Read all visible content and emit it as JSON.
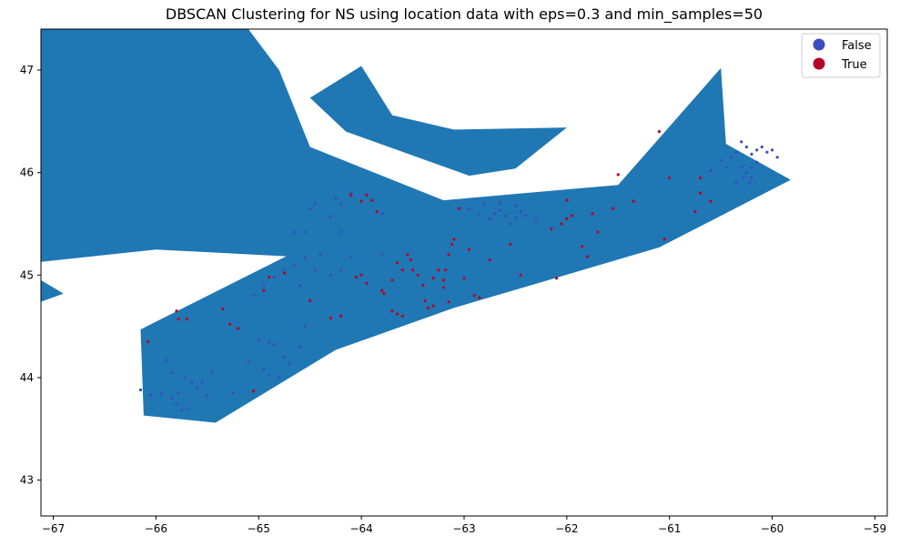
{
  "chart_data": {
    "type": "scatter",
    "title": "DBSCAN Clustering for NS using location data with eps=0.3 and min_samples=50",
    "xlabel": "",
    "ylabel": "",
    "xlim": [
      -67.12,
      -58.88
    ],
    "ylim": [
      42.65,
      47.4
    ],
    "x_ticks": [
      -67,
      -66,
      -65,
      -64,
      -63,
      -62,
      -61,
      -60,
      -59
    ],
    "y_ticks": [
      43,
      44,
      45,
      46,
      47
    ],
    "x_tick_labels": [
      "−67",
      "−66",
      "−65",
      "−64",
      "−63",
      "−62",
      "−61",
      "−60",
      "−59"
    ],
    "y_tick_labels": [
      "43",
      "44",
      "45",
      "46",
      "47"
    ],
    "grid": false,
    "legend_position": "top-right",
    "map_color": "#1f77b4",
    "map_polygons": [
      [
        [
          -67.12,
          47.4
        ],
        [
          -65.1,
          47.4
        ],
        [
          -64.8,
          47.0
        ],
        [
          -64.5,
          46.25
        ],
        [
          -63.2,
          45.73
        ],
        [
          -61.5,
          45.88
        ],
        [
          -60.5,
          47.02
        ],
        [
          -60.45,
          46.28
        ],
        [
          -59.82,
          45.93
        ],
        [
          -61.1,
          45.27
        ],
        [
          -63.1,
          44.68
        ],
        [
          -64.25,
          44.27
        ],
        [
          -65.42,
          43.56
        ],
        [
          -66.12,
          43.63
        ],
        [
          -66.15,
          44.47
        ],
        [
          -64.5,
          45.3
        ],
        [
          -64.45,
          45.17
        ],
        [
          -66.0,
          45.25
        ],
        [
          -67.12,
          45.13
        ]
      ],
      [
        [
          -67.12,
          44.95
        ],
        [
          -66.9,
          44.82
        ],
        [
          -67.12,
          44.74
        ]
      ],
      [
        [
          -64.5,
          46.73
        ],
        [
          -64.0,
          47.04
        ],
        [
          -63.7,
          46.56
        ],
        [
          -63.1,
          46.42
        ],
        [
          -62.0,
          46.44
        ],
        [
          -62.5,
          46.04
        ],
        [
          -62.95,
          45.97
        ],
        [
          -64.15,
          46.4
        ]
      ]
    ],
    "series": [
      {
        "name": "False",
        "color": "#3b4cc0",
        "points": [
          [
            -66.15,
            43.88
          ],
          [
            -66.05,
            43.83
          ],
          [
            -65.95,
            43.84
          ],
          [
            -65.9,
            44.17
          ],
          [
            -65.85,
            43.8
          ],
          [
            -65.8,
            43.75
          ],
          [
            -65.78,
            43.85
          ],
          [
            -65.72,
            44.0
          ],
          [
            -65.65,
            43.95
          ],
          [
            -65.6,
            43.9
          ],
          [
            -65.75,
            43.68
          ],
          [
            -65.7,
            43.7
          ],
          [
            -65.5,
            43.83
          ],
          [
            -65.45,
            44.05
          ],
          [
            -65.25,
            43.85
          ],
          [
            -65.55,
            43.95
          ],
          [
            -65.85,
            44.05
          ],
          [
            -65.0,
            44.37
          ],
          [
            -64.9,
            44.34
          ],
          [
            -64.85,
            44.32
          ],
          [
            -64.75,
            44.2
          ],
          [
            -64.6,
            44.3
          ],
          [
            -64.55,
            44.5
          ],
          [
            -64.8,
            44.0
          ],
          [
            -64.9,
            44.02
          ],
          [
            -64.95,
            44.08
          ],
          [
            -65.1,
            44.15
          ],
          [
            -64.7,
            44.14
          ],
          [
            -65.05,
            44.8
          ],
          [
            -64.95,
            44.9
          ],
          [
            -64.85,
            44.98
          ],
          [
            -64.75,
            45.05
          ],
          [
            -64.65,
            45.1
          ],
          [
            -64.6,
            44.9
          ],
          [
            -64.55,
            45.17
          ],
          [
            -64.3,
            45.0
          ],
          [
            -64.2,
            45.05
          ],
          [
            -64.1,
            45.18
          ],
          [
            -63.8,
            45.2
          ],
          [
            -64.45,
            45.05
          ],
          [
            -64.4,
            45.2
          ],
          [
            -64.65,
            45.42
          ],
          [
            -64.55,
            45.42
          ],
          [
            -64.5,
            45.65
          ],
          [
            -64.45,
            45.7
          ],
          [
            -64.3,
            45.57
          ],
          [
            -64.2,
            45.42
          ],
          [
            -64.1,
            45.8
          ],
          [
            -64.25,
            45.75
          ],
          [
            -63.95,
            45.78
          ],
          [
            -63.8,
            45.6
          ],
          [
            -64.2,
            45.7
          ],
          [
            -62.95,
            45.65
          ],
          [
            -62.85,
            45.6
          ],
          [
            -62.75,
            45.55
          ],
          [
            -62.7,
            45.6
          ],
          [
            -62.65,
            45.63
          ],
          [
            -62.6,
            45.58
          ],
          [
            -62.55,
            45.5
          ],
          [
            -62.5,
            45.56
          ],
          [
            -62.45,
            45.62
          ],
          [
            -62.4,
            45.58
          ],
          [
            -62.3,
            45.55
          ],
          [
            -62.8,
            45.7
          ],
          [
            -62.65,
            45.7
          ],
          [
            -62.5,
            45.68
          ],
          [
            -60.4,
            46.15
          ],
          [
            -60.35,
            46.2
          ],
          [
            -60.3,
            46.3
          ],
          [
            -60.25,
            46.25
          ],
          [
            -60.2,
            46.18
          ],
          [
            -60.15,
            46.22
          ],
          [
            -60.1,
            46.25
          ],
          [
            -60.05,
            46.2
          ],
          [
            -60.0,
            46.22
          ],
          [
            -59.95,
            46.15
          ],
          [
            -60.3,
            46.05
          ],
          [
            -60.25,
            46.0
          ],
          [
            -60.2,
            45.95
          ],
          [
            -60.35,
            45.9
          ],
          [
            -60.28,
            45.95
          ],
          [
            -60.5,
            46.12
          ],
          [
            -60.45,
            46.05
          ],
          [
            -60.6,
            46.02
          ],
          [
            -60.15,
            46.1
          ],
          [
            -60.2,
            46.05
          ],
          [
            -60.22,
            45.9
          ]
        ]
      },
      {
        "name": "True",
        "color": "#b40426",
        "points": [
          [
            -66.08,
            44.35
          ],
          [
            -65.8,
            44.65
          ],
          [
            -65.78,
            44.57
          ],
          [
            -65.7,
            44.57
          ],
          [
            -65.35,
            44.67
          ],
          [
            -65.28,
            44.52
          ],
          [
            -65.2,
            44.48
          ],
          [
            -65.05,
            43.87
          ],
          [
            -64.9,
            44.98
          ],
          [
            -64.95,
            44.85
          ],
          [
            -64.75,
            45.02
          ],
          [
            -64.5,
            44.75
          ],
          [
            -64.3,
            44.58
          ],
          [
            -64.2,
            44.6
          ],
          [
            -64.1,
            45.78
          ],
          [
            -64.0,
            45.72
          ],
          [
            -63.95,
            45.78
          ],
          [
            -63.9,
            45.73
          ],
          [
            -63.85,
            45.62
          ],
          [
            -64.05,
            44.98
          ],
          [
            -64.0,
            45.0
          ],
          [
            -63.95,
            44.92
          ],
          [
            -63.8,
            44.85
          ],
          [
            -63.78,
            44.82
          ],
          [
            -63.7,
            44.95
          ],
          [
            -63.65,
            45.12
          ],
          [
            -63.6,
            45.05
          ],
          [
            -63.55,
            45.2
          ],
          [
            -63.52,
            45.15
          ],
          [
            -63.5,
            45.05
          ],
          [
            -63.45,
            45.0
          ],
          [
            -63.4,
            44.9
          ],
          [
            -63.38,
            44.75
          ],
          [
            -63.35,
            44.68
          ],
          [
            -63.3,
            44.7
          ],
          [
            -63.7,
            44.65
          ],
          [
            -63.6,
            44.6
          ],
          [
            -63.65,
            44.62
          ],
          [
            -63.2,
            44.95
          ],
          [
            -63.18,
            45.05
          ],
          [
            -63.15,
            45.2
          ],
          [
            -63.12,
            45.3
          ],
          [
            -63.1,
            45.35
          ],
          [
            -63.05,
            45.65
          ],
          [
            -63.0,
            44.97
          ],
          [
            -62.95,
            45.25
          ],
          [
            -63.3,
            44.97
          ],
          [
            -63.25,
            45.05
          ],
          [
            -63.15,
            44.74
          ],
          [
            -62.85,
            44.78
          ],
          [
            -62.75,
            45.15
          ],
          [
            -62.55,
            45.3
          ],
          [
            -62.45,
            45.0
          ],
          [
            -62.15,
            45.45
          ],
          [
            -62.05,
            45.5
          ],
          [
            -62.0,
            45.55
          ],
          [
            -62.0,
            45.73
          ],
          [
            -61.95,
            45.58
          ],
          [
            -61.85,
            45.28
          ],
          [
            -61.8,
            45.18
          ],
          [
            -61.75,
            45.6
          ],
          [
            -61.7,
            45.42
          ],
          [
            -61.5,
            45.98
          ],
          [
            -61.55,
            45.65
          ],
          [
            -61.35,
            45.72
          ],
          [
            -61.1,
            46.4
          ],
          [
            -61.05,
            45.35
          ],
          [
            -61.0,
            45.95
          ],
          [
            -60.7,
            45.95
          ],
          [
            -60.7,
            45.8
          ],
          [
            -60.6,
            45.72
          ],
          [
            -60.75,
            45.62
          ],
          [
            -62.1,
            44.97
          ],
          [
            -62.9,
            44.8
          ],
          [
            -63.2,
            44.88
          ]
        ]
      }
    ]
  }
}
